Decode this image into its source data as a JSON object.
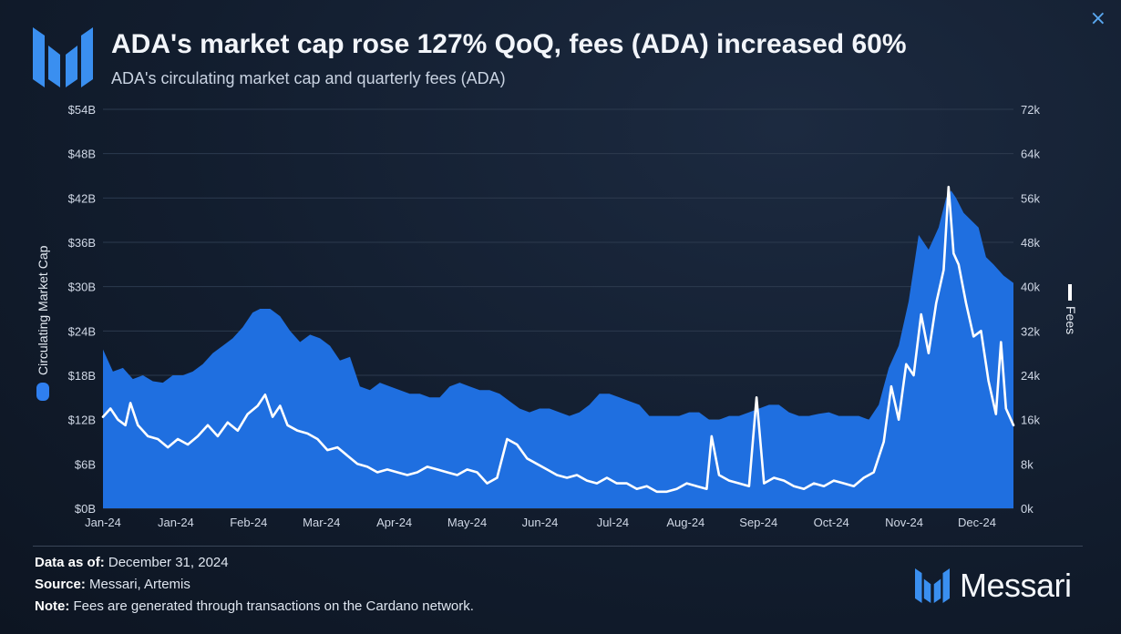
{
  "header": {
    "title": "ADA's market cap rose 127% QoQ, fees (ADA) increased 60%",
    "subtitle": "ADA's circulating market cap and quarterly fees (ADA)",
    "close_icon": "×"
  },
  "footer": {
    "data_as_of_label": "Data as of:",
    "data_as_of_value": "December 31, 2024",
    "source_label": "Source:",
    "source_value": "Messari, Artemis",
    "note_label": "Note:",
    "note_value": "Fees are generated through transactions on the Cardano network."
  },
  "brand": {
    "name": "Messari",
    "logo_icon": "messari-logo-icon"
  },
  "colors": {
    "area": "#1f6fe0",
    "line": "#ffffff",
    "grid": "#2c3a4e",
    "accent": "#4aa3f5"
  },
  "chart_data": {
    "type": "area",
    "title": "ADA's market cap rose 127% QoQ, fees (ADA) increased 60%",
    "subtitle": "ADA's circulating market cap and quarterly fees (ADA)",
    "x_tick_labels": [
      "Jan-24",
      "Jan-24",
      "Feb-24",
      "Mar-24",
      "Apr-24",
      "May-24",
      "Jun-24",
      "Jul-24",
      "Aug-24",
      "Sep-24",
      "Oct-24",
      "Nov-24",
      "Dec-24"
    ],
    "x_range": [
      "2024-01-01",
      "2024-12-31"
    ],
    "y_left": {
      "label": "Circulating Market Cap",
      "range": [
        0,
        54
      ],
      "tick_values": [
        0,
        6,
        12,
        18,
        24,
        30,
        36,
        42,
        48,
        54
      ],
      "tick_labels": [
        "$0B",
        "$6B",
        "$12B",
        "$18B",
        "$24B",
        "$30B",
        "$36B",
        "$42B",
        "$48B",
        "$54B"
      ]
    },
    "y_right": {
      "label": "Fees",
      "range": [
        0,
        72000
      ],
      "tick_values": [
        0,
        8000,
        16000,
        24000,
        32000,
        40000,
        48000,
        56000,
        64000,
        72000
      ],
      "tick_labels": [
        "0k",
        "8k",
        "16k",
        "24k",
        "32k",
        "40k",
        "48k",
        "56k",
        "64k",
        "72k"
      ]
    },
    "grid": true,
    "series": [
      {
        "name": "Circulating Market Cap",
        "type": "area",
        "axis": "left",
        "points": [
          [
            "2024-01-01",
            21.5
          ],
          [
            "2024-01-05",
            18.5
          ],
          [
            "2024-01-09",
            19
          ],
          [
            "2024-01-13",
            17.5
          ],
          [
            "2024-01-17",
            18
          ],
          [
            "2024-01-21",
            17.2
          ],
          [
            "2024-01-25",
            17
          ],
          [
            "2024-01-29",
            18
          ],
          [
            "2024-02-02",
            18
          ],
          [
            "2024-02-06",
            18.5
          ],
          [
            "2024-02-10",
            19.5
          ],
          [
            "2024-02-14",
            21
          ],
          [
            "2024-02-18",
            22
          ],
          [
            "2024-02-22",
            23
          ],
          [
            "2024-02-26",
            24.5
          ],
          [
            "2024-03-01",
            26.5
          ],
          [
            "2024-03-04",
            27
          ],
          [
            "2024-03-08",
            27
          ],
          [
            "2024-03-12",
            26
          ],
          [
            "2024-03-16",
            24
          ],
          [
            "2024-03-20",
            22.5
          ],
          [
            "2024-03-24",
            23.5
          ],
          [
            "2024-03-28",
            23
          ],
          [
            "2024-04-01",
            22
          ],
          [
            "2024-04-05",
            20
          ],
          [
            "2024-04-09",
            20.5
          ],
          [
            "2024-04-13",
            16.5
          ],
          [
            "2024-04-17",
            16
          ],
          [
            "2024-04-21",
            17
          ],
          [
            "2024-04-25",
            16.5
          ],
          [
            "2024-04-29",
            16
          ],
          [
            "2024-05-03",
            15.5
          ],
          [
            "2024-05-07",
            15.5
          ],
          [
            "2024-05-11",
            15
          ],
          [
            "2024-05-15",
            15
          ],
          [
            "2024-05-19",
            16.5
          ],
          [
            "2024-05-23",
            17
          ],
          [
            "2024-05-27",
            16.5
          ],
          [
            "2024-05-31",
            16
          ],
          [
            "2024-06-04",
            16
          ],
          [
            "2024-06-08",
            15.5
          ],
          [
            "2024-06-12",
            14.5
          ],
          [
            "2024-06-16",
            13.5
          ],
          [
            "2024-06-20",
            13
          ],
          [
            "2024-06-24",
            13.5
          ],
          [
            "2024-06-28",
            13.5
          ],
          [
            "2024-07-02",
            13
          ],
          [
            "2024-07-06",
            12.5
          ],
          [
            "2024-07-10",
            13
          ],
          [
            "2024-07-14",
            14
          ],
          [
            "2024-07-18",
            15.5
          ],
          [
            "2024-07-22",
            15.5
          ],
          [
            "2024-07-26",
            15
          ],
          [
            "2024-07-30",
            14.5
          ],
          [
            "2024-08-03",
            14
          ],
          [
            "2024-08-07",
            12.5
          ],
          [
            "2024-08-11",
            12.5
          ],
          [
            "2024-08-15",
            12.5
          ],
          [
            "2024-08-19",
            12.5
          ],
          [
            "2024-08-23",
            13
          ],
          [
            "2024-08-27",
            13
          ],
          [
            "2024-08-31",
            12
          ],
          [
            "2024-09-04",
            12
          ],
          [
            "2024-09-08",
            12.5
          ],
          [
            "2024-09-12",
            12.5
          ],
          [
            "2024-09-16",
            13
          ],
          [
            "2024-09-20",
            13.5
          ],
          [
            "2024-09-24",
            14
          ],
          [
            "2024-09-28",
            14
          ],
          [
            "2024-10-02",
            13
          ],
          [
            "2024-10-06",
            12.5
          ],
          [
            "2024-10-10",
            12.5
          ],
          [
            "2024-10-14",
            12.8
          ],
          [
            "2024-10-18",
            13
          ],
          [
            "2024-10-22",
            12.5
          ],
          [
            "2024-10-26",
            12.5
          ],
          [
            "2024-10-30",
            12.5
          ],
          [
            "2024-11-03",
            12
          ],
          [
            "2024-11-07",
            14
          ],
          [
            "2024-11-11",
            19
          ],
          [
            "2024-11-15",
            22
          ],
          [
            "2024-11-19",
            28
          ],
          [
            "2024-11-23",
            37
          ],
          [
            "2024-11-27",
            35
          ],
          [
            "2024-12-01",
            38
          ],
          [
            "2024-12-04",
            42
          ],
          [
            "2024-12-06",
            43
          ],
          [
            "2024-12-08",
            42
          ],
          [
            "2024-12-11",
            40
          ],
          [
            "2024-12-14",
            39
          ],
          [
            "2024-12-17",
            38
          ],
          [
            "2024-12-20",
            34
          ],
          [
            "2024-12-23",
            33
          ],
          [
            "2024-12-27",
            31.5
          ],
          [
            "2024-12-31",
            30.5
          ]
        ]
      },
      {
        "name": "Fees",
        "type": "line",
        "axis": "right",
        "points": [
          [
            "2024-01-01",
            16500
          ],
          [
            "2024-01-04",
            18000
          ],
          [
            "2024-01-07",
            16000
          ],
          [
            "2024-01-10",
            15000
          ],
          [
            "2024-01-12",
            19000
          ],
          [
            "2024-01-15",
            15000
          ],
          [
            "2024-01-19",
            13000
          ],
          [
            "2024-01-23",
            12500
          ],
          [
            "2024-01-27",
            11000
          ],
          [
            "2024-01-31",
            12500
          ],
          [
            "2024-02-04",
            11500
          ],
          [
            "2024-02-08",
            13000
          ],
          [
            "2024-02-12",
            15000
          ],
          [
            "2024-02-16",
            13000
          ],
          [
            "2024-02-20",
            15500
          ],
          [
            "2024-02-24",
            14000
          ],
          [
            "2024-02-28",
            17000
          ],
          [
            "2024-03-03",
            18500
          ],
          [
            "2024-03-06",
            20500
          ],
          [
            "2024-03-09",
            16500
          ],
          [
            "2024-03-12",
            18500
          ],
          [
            "2024-03-15",
            15000
          ],
          [
            "2024-03-19",
            14000
          ],
          [
            "2024-03-23",
            13500
          ],
          [
            "2024-03-27",
            12500
          ],
          [
            "2024-03-31",
            10500
          ],
          [
            "2024-04-04",
            11000
          ],
          [
            "2024-04-08",
            9500
          ],
          [
            "2024-04-12",
            8000
          ],
          [
            "2024-04-16",
            7500
          ],
          [
            "2024-04-20",
            6500
          ],
          [
            "2024-04-24",
            7000
          ],
          [
            "2024-04-28",
            6500
          ],
          [
            "2024-05-02",
            6000
          ],
          [
            "2024-05-06",
            6500
          ],
          [
            "2024-05-10",
            7500
          ],
          [
            "2024-05-14",
            7000
          ],
          [
            "2024-05-18",
            6500
          ],
          [
            "2024-05-22",
            6000
          ],
          [
            "2024-05-26",
            7000
          ],
          [
            "2024-05-30",
            6500
          ],
          [
            "2024-06-03",
            4500
          ],
          [
            "2024-06-07",
            5500
          ],
          [
            "2024-06-11",
            12500
          ],
          [
            "2024-06-15",
            11500
          ],
          [
            "2024-06-19",
            9000
          ],
          [
            "2024-06-23",
            8000
          ],
          [
            "2024-06-27",
            7000
          ],
          [
            "2024-07-01",
            6000
          ],
          [
            "2024-07-05",
            5500
          ],
          [
            "2024-07-09",
            6000
          ],
          [
            "2024-07-13",
            5000
          ],
          [
            "2024-07-17",
            4500
          ],
          [
            "2024-07-21",
            5500
          ],
          [
            "2024-07-25",
            4500
          ],
          [
            "2024-07-29",
            4500
          ],
          [
            "2024-08-02",
            3500
          ],
          [
            "2024-08-06",
            4000
          ],
          [
            "2024-08-10",
            3000
          ],
          [
            "2024-08-14",
            3000
          ],
          [
            "2024-08-18",
            3500
          ],
          [
            "2024-08-22",
            4500
          ],
          [
            "2024-08-26",
            4000
          ],
          [
            "2024-08-30",
            3500
          ],
          [
            "2024-09-01",
            13000
          ],
          [
            "2024-09-04",
            6000
          ],
          [
            "2024-09-08",
            5000
          ],
          [
            "2024-09-12",
            4500
          ],
          [
            "2024-09-16",
            4000
          ],
          [
            "2024-09-19",
            20000
          ],
          [
            "2024-09-22",
            4500
          ],
          [
            "2024-09-26",
            5500
          ],
          [
            "2024-09-30",
            5000
          ],
          [
            "2024-10-04",
            4000
          ],
          [
            "2024-10-08",
            3500
          ],
          [
            "2024-10-12",
            4500
          ],
          [
            "2024-10-16",
            4000
          ],
          [
            "2024-10-20",
            5000
          ],
          [
            "2024-10-24",
            4500
          ],
          [
            "2024-10-28",
            4000
          ],
          [
            "2024-11-01",
            5500
          ],
          [
            "2024-11-05",
            6500
          ],
          [
            "2024-11-09",
            12000
          ],
          [
            "2024-11-12",
            22000
          ],
          [
            "2024-11-15",
            16000
          ],
          [
            "2024-11-18",
            26000
          ],
          [
            "2024-11-21",
            24000
          ],
          [
            "2024-11-24",
            35000
          ],
          [
            "2024-11-27",
            28000
          ],
          [
            "2024-11-30",
            37000
          ],
          [
            "2024-12-03",
            43000
          ],
          [
            "2024-12-05",
            58000
          ],
          [
            "2024-12-07",
            46000
          ],
          [
            "2024-12-09",
            44000
          ],
          [
            "2024-12-12",
            37000
          ],
          [
            "2024-12-15",
            31000
          ],
          [
            "2024-12-18",
            32000
          ],
          [
            "2024-12-21",
            23000
          ],
          [
            "2024-12-24",
            17000
          ],
          [
            "2024-12-26",
            30000
          ],
          [
            "2024-12-28",
            18000
          ],
          [
            "2024-12-31",
            15000
          ]
        ]
      }
    ]
  }
}
